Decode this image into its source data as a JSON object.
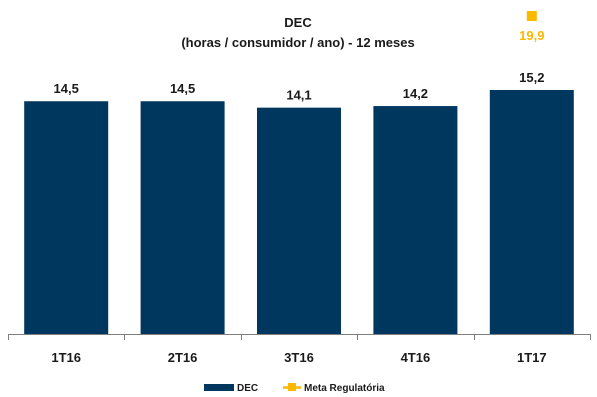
{
  "chart_data": {
    "type": "bar",
    "title": "DEC",
    "subtitle": "(horas / consumidor / ano) - 12 meses",
    "categories": [
      "1T16",
      "2T16",
      "3T16",
      "4T16",
      "1T17"
    ],
    "series": [
      {
        "name": "DEC",
        "values": [
          14.5,
          14.5,
          14.1,
          14.2,
          15.2
        ],
        "value_labels": [
          "14,5",
          "14,5",
          "14,1",
          "14,2",
          "15,2"
        ],
        "color": "#00375f"
      },
      {
        "name": "Meta Regulatória",
        "type": "point",
        "category": "1T17",
        "value": 19.9,
        "value_label": "19,9",
        "color": "#fbb900"
      }
    ],
    "ylim": [
      0,
      20.5
    ],
    "grid": false,
    "legend": "bottom-center"
  }
}
